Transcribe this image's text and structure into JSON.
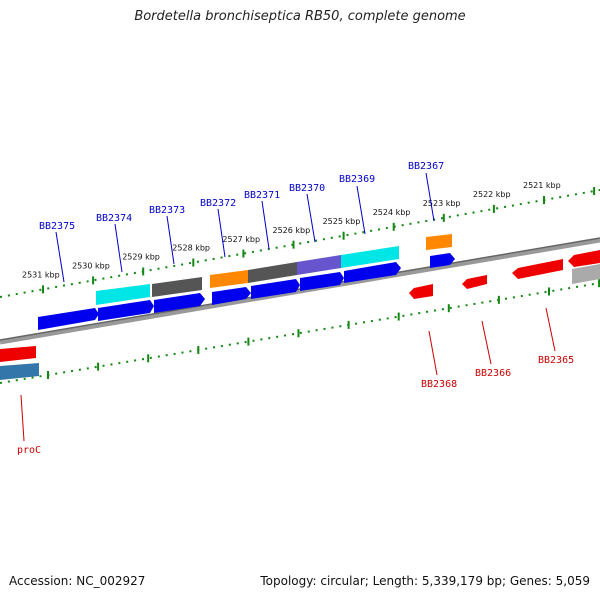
{
  "title": "Bordetella bronchiseptica RB50, complete genome",
  "footer": {
    "accession": "Accession: NC_002927",
    "summary": "Topology: circular; Length: 5,339,179 bp; Genes: 5,059"
  },
  "colors": {
    "forward_label": "#0000cc",
    "reverse_label": "#cc0000",
    "tick": "#118811",
    "backbone": "#777777"
  },
  "scale_ticks": [
    "2531 kbp",
    "2530 kbp",
    "2529 kbp",
    "2528 kbp",
    "2527 kbp",
    "2526 kbp",
    "2525 kbp",
    "2524 kbp",
    "2523 kbp",
    "2522 kbp",
    "2521 kbp"
  ],
  "forward_genes": [
    "BB2375",
    "BB2374",
    "BB2373",
    "BB2372",
    "BB2371",
    "BB2370",
    "BB2369",
    "BB2367"
  ],
  "reverse_genes": [
    "BB2368",
    "BB2366",
    "BB2365",
    "proC"
  ]
}
